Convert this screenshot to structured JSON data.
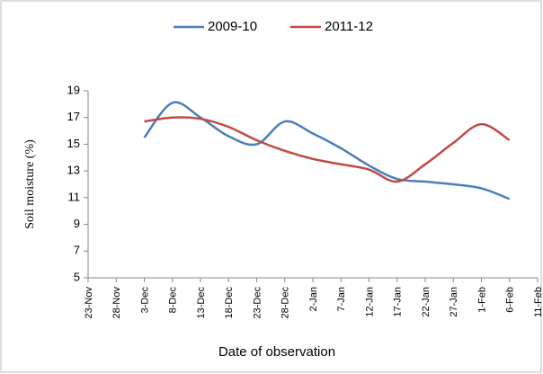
{
  "chart_data": {
    "type": "line",
    "x_label": "Date of observation",
    "y_label": "Soil moisture (%)",
    "categories": [
      "23-Nov",
      "28-Nov",
      "3-Dec",
      "8-Dec",
      "13-Dec",
      "18-Dec",
      "23-Dec",
      "28-Dec",
      "2-Jan",
      "7-Jan",
      "12-Jan",
      "17-Jan",
      "22-Jan",
      "27-Jan",
      "1-Feb",
      "6-Feb",
      "11-Feb"
    ],
    "series": [
      {
        "name": "2009-10",
        "color": "#4a7ebb",
        "values": [
          null,
          null,
          15.5,
          18.1,
          17.0,
          15.6,
          15.0,
          16.7,
          15.8,
          14.7,
          13.4,
          12.4,
          12.2,
          12.0,
          11.7,
          10.9,
          null
        ]
      },
      {
        "name": "2011-12",
        "color": "#be4b48",
        "values": [
          null,
          null,
          16.7,
          17.0,
          16.9,
          16.3,
          15.3,
          14.5,
          13.9,
          13.5,
          13.1,
          12.2,
          13.5,
          15.1,
          16.5,
          15.3,
          null
        ]
      }
    ],
    "ylim": [
      5,
      19
    ],
    "yticks": [
      5,
      7,
      9,
      11,
      13,
      15,
      17,
      19
    ],
    "legend": "top"
  }
}
